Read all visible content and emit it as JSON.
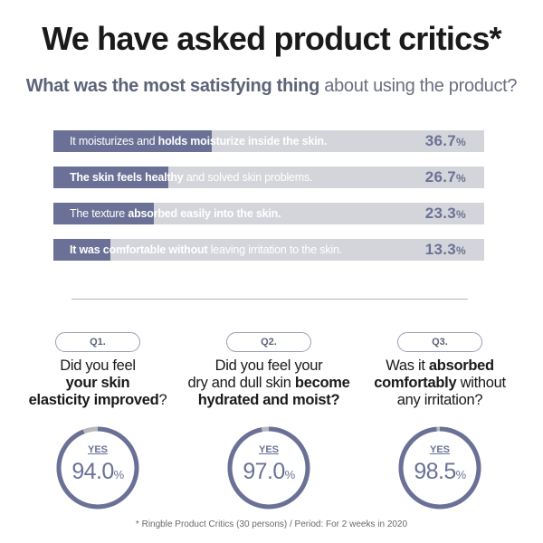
{
  "title": "We have asked product critics*",
  "subtitle": {
    "bold": "What was the most satisfying thing",
    "rest": " about using the product?"
  },
  "colors": {
    "accent": "#6b7196",
    "track": "#d4d5da",
    "ring_track": "#b8b9bf"
  },
  "chart_data": [
    {
      "type": "bar",
      "orientation": "horizontal",
      "title": "What was the most satisfying thing about using the product?",
      "unit": "%",
      "xlim": [
        0,
        100
      ],
      "categories": [
        "It moisturizes and holds moisturize inside the skin.",
        "The skin feels healthy and solved skin problems.",
        "The texture absorbed easily into the skin.",
        "It was comfortable without leaving irritation to the skin."
      ],
      "values": [
        36.7,
        26.7,
        23.3,
        13.3
      ],
      "bars": [
        {
          "parts": [
            [
              "It moisturizes and ",
              false
            ],
            [
              "holds moisturize inside the skin.",
              true
            ]
          ],
          "value": 36.7,
          "value_text": "36.7",
          "pct": "%"
        },
        {
          "parts": [
            [
              "The skin feels healthy",
              true
            ],
            [
              " and solved skin problems.",
              false
            ]
          ],
          "value": 26.7,
          "value_text": "26.7",
          "pct": "%"
        },
        {
          "parts": [
            [
              "The texture ",
              false
            ],
            [
              "absorbed easily into the skin.",
              true
            ]
          ],
          "value": 23.3,
          "value_text": "23.3",
          "pct": "%"
        },
        {
          "parts": [
            [
              "It was comfortable without",
              true
            ],
            [
              " leaving irritation to the skin.",
              false
            ]
          ],
          "value": 13.3,
          "value_text": "13.3",
          "pct": "%"
        }
      ]
    },
    {
      "type": "pie",
      "subtype": "donut",
      "label": "YES",
      "values": [
        94.0,
        97.0,
        98.5
      ]
    }
  ],
  "questions": [
    {
      "badge": "Q1.",
      "lines": [
        [
          [
            "Did you feel",
            false
          ]
        ],
        [
          [
            "your skin",
            true
          ]
        ],
        [
          [
            "elasticity improved",
            true
          ],
          [
            "?",
            false
          ]
        ]
      ],
      "yes_label": "YES",
      "value": 94.0,
      "value_text": "94.0",
      "pct": "%"
    },
    {
      "badge": "Q2.",
      "lines": [
        [
          [
            "Did you feel your",
            false
          ]
        ],
        [
          [
            "dry and dull skin ",
            false
          ],
          [
            "become",
            true
          ]
        ],
        [
          [
            "hydrated and moist?",
            true
          ]
        ]
      ],
      "yes_label": "YES",
      "value": 97.0,
      "value_text": "97.0",
      "pct": "%"
    },
    {
      "badge": "Q3.",
      "lines": [
        [
          [
            "Was it ",
            false
          ],
          [
            "absorbed",
            true
          ]
        ],
        [
          [
            "comfortably",
            true
          ],
          [
            " without",
            false
          ]
        ],
        [
          [
            "any irritation?",
            false
          ]
        ]
      ],
      "yes_label": "YES",
      "value": 98.5,
      "value_text": "98.5",
      "pct": "%"
    }
  ],
  "footnote": "* Ringble Product Critics (30 persons) / Period: For 2 weeks in 2020"
}
